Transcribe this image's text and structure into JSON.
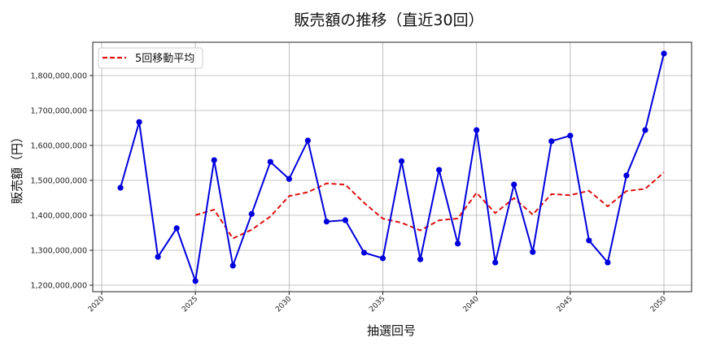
{
  "chart_data": {
    "type": "line",
    "title": "販売額の推移（直近30回）",
    "xlabel": "抽選回号",
    "ylabel": "販売額（円）",
    "xlim": [
      2018.9,
      2051.5
    ],
    "ylim": [
      1180000000,
      1895000000
    ],
    "x_ticks": [
      2020,
      2025,
      2030,
      2035,
      2040,
      2045,
      2050
    ],
    "y_ticks": [
      1200000000,
      1300000000,
      1400000000,
      1500000000,
      1600000000,
      1700000000,
      1800000000
    ],
    "y_tick_labels": [
      "1,200,000,000",
      "1,300,000,000",
      "1,400,000,000",
      "1,500,000,000",
      "1,600,000,000",
      "1,700,000,000",
      "1,800,000,000"
    ],
    "grid": true,
    "legend_position": "upper left",
    "x": [
      2021,
      2022,
      2023,
      2024,
      2025,
      2026,
      2027,
      2028,
      2029,
      2030,
      2031,
      2032,
      2033,
      2034,
      2035,
      2036,
      2037,
      2038,
      2039,
      2040,
      2041,
      2042,
      2043,
      2044,
      2045,
      2046,
      2047,
      2048,
      2049,
      2050
    ],
    "series": [
      {
        "name": "販売額",
        "color": "#0000dd",
        "style": "solid",
        "marker": "circle",
        "in_legend": false,
        "values": [
          1479000000,
          1667000000,
          1281000000,
          1363000000,
          1212000000,
          1558000000,
          1256000000,
          1404000000,
          1553000000,
          1504000000,
          1614000000,
          1382000000,
          1386000000,
          1293000000,
          1277000000,
          1555000000,
          1274000000,
          1530000000,
          1319000000,
          1644000000,
          1265000000,
          1488000000,
          1295000000,
          1612000000,
          1628000000,
          1328000000,
          1265000000,
          1514000000,
          1644000000,
          1863000000
        ]
      },
      {
        "name": "5回移動平均",
        "color": "#dd1111",
        "style": "dashed",
        "marker": "none",
        "in_legend": true,
        "values": [
          null,
          null,
          null,
          null,
          1400400000,
          1416200000,
          1334000000,
          1358600000,
          1396600000,
          1455000000,
          1466200000,
          1491400000,
          1487800000,
          1435800000,
          1390400000,
          1378600000,
          1357000000,
          1385800000,
          1391000000,
          1464400000,
          1406400000,
          1449200000,
          1402200000,
          1460800000,
          1457600000,
          1470200000,
          1425600000,
          1469400000,
          1475800000,
          1522800000
        ]
      }
    ]
  }
}
